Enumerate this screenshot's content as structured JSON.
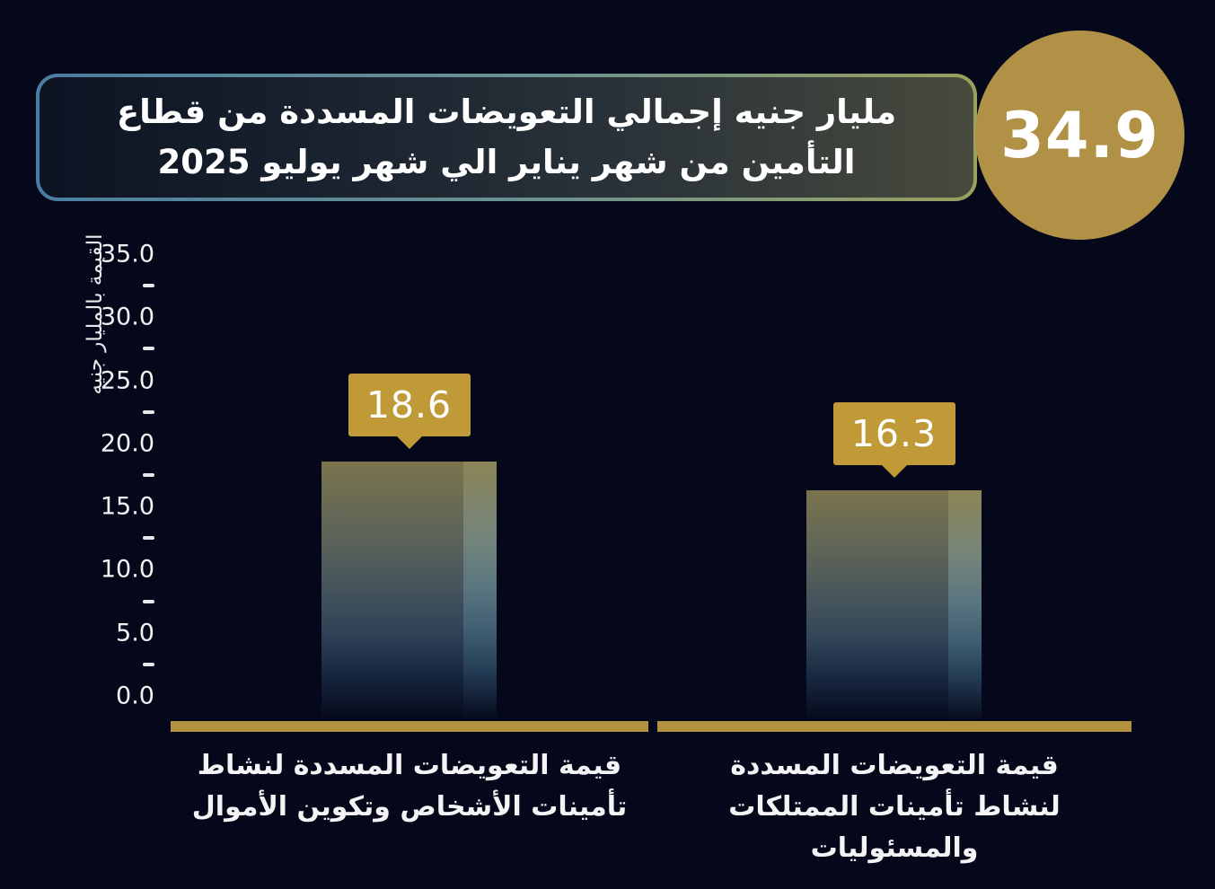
{
  "header": {
    "title_line1": "مليار جنيه إجمالي التعويضات المسددة من قطاع",
    "title_line2": "التأمين من شهر  يناير الي شهر يوليو 2025",
    "badge_value": "34.9"
  },
  "colors": {
    "background": "#05081a",
    "badge_gold": "#b09145",
    "callout_gold": "#c09a36",
    "axis_gold": "#b29140",
    "title_border_left": "#4a7da0",
    "title_border_right": "#9aa05e",
    "text": "#ffffff"
  },
  "chart_data": {
    "type": "bar",
    "title": "مليار جنيه إجمالي التعويضات المسددة من قطاع التأمين من شهر يناير الي شهر يوليو 2025",
    "total_label": "34.9",
    "total": 34.9,
    "ylabel": "القيمة بالمليار جنيه",
    "xlabel": "",
    "ylim": [
      0,
      35
    ],
    "ytick_step": 5,
    "ytick_labels": [
      "35.0",
      "30.0",
      "25.0",
      "20.0",
      "15.0",
      "10.0",
      "5.0",
      "0.0"
    ],
    "minor_dashes": true,
    "grid": false,
    "legend": false,
    "categories": [
      "قيمة التعويضات المسددة لنشاط تأمينات الأشخاص وتكوين الأموال",
      "قيمة التعويضات المسددة لنشاط تأمينات الممتلكات والمسئوليات"
    ],
    "category_lines": [
      [
        "قيمة التعويضات المسددة لنشاط",
        "تأمينات الأشخاص وتكوين الأموال"
      ],
      [
        "قيمة التعويضات المسددة",
        "لنشاط تأمينات الممتلكات والمسئوليات"
      ]
    ],
    "values": [
      18.6,
      16.3
    ],
    "value_labels": [
      "18.6",
      "16.3"
    ]
  }
}
